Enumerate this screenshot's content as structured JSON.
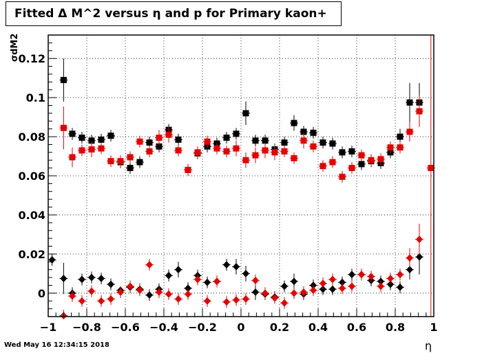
{
  "title": "Fitted Δ M^2 versus η and p for Primary kaon+",
  "timestamp": "Wed May 16 12:34:15 2018",
  "chart_data": {
    "type": "scatter",
    "title": "Fitted Δ M^2 versus η and p for Primary kaon+",
    "xlabel": "η",
    "ylabel": "σdM2",
    "xlim": [
      -1.0,
      1.0
    ],
    "ylim": [
      -0.012,
      0.132
    ],
    "grid": true,
    "x_ticks": [
      -1,
      -0.8,
      -0.6,
      -0.4,
      -0.2,
      0,
      0.2,
      0.4,
      0.6,
      0.8,
      1
    ],
    "x_tick_labels": [
      "−1",
      "−0.8",
      "−0.6",
      "−0.4",
      "−0.2",
      "0",
      "0.2",
      "0.4",
      "0.6",
      "0.8",
      "1"
    ],
    "y_ticks": [
      0,
      0.02,
      0.04,
      0.06,
      0.08,
      0.1,
      0.12
    ],
    "y_tick_labels": [
      "0",
      "0.02",
      "0.04",
      "0.06",
      "0.08",
      "0.1",
      "0.12"
    ],
    "series": [
      {
        "marker": "square",
        "color": "#000000",
        "x": [
          -0.92,
          -0.875,
          -0.825,
          -0.775,
          -0.725,
          -0.675,
          -0.625,
          -0.575,
          -0.525,
          -0.475,
          -0.425,
          -0.375,
          -0.325,
          -0.275,
          -0.225,
          -0.175,
          -0.125,
          -0.075,
          -0.025,
          0.025,
          0.075,
          0.125,
          0.175,
          0.225,
          0.275,
          0.325,
          0.375,
          0.425,
          0.475,
          0.525,
          0.575,
          0.625,
          0.675,
          0.725,
          0.775,
          0.825,
          0.875,
          0.925
        ],
        "y": [
          0.109,
          0.0815,
          0.0795,
          0.078,
          0.0785,
          0.0805,
          0.067,
          0.064,
          0.067,
          0.077,
          0.075,
          0.0835,
          0.0785,
          0.063,
          0.0715,
          0.075,
          0.0765,
          0.0795,
          0.0815,
          0.092,
          0.078,
          0.078,
          0.0735,
          0.077,
          0.087,
          0.0825,
          0.082,
          0.077,
          0.0765,
          0.072,
          0.0725,
          0.066,
          0.0675,
          0.0665,
          0.072,
          0.08,
          0.0975,
          0.0975
        ],
        "err": [
          0.011,
          0.003,
          0.003,
          0.003,
          0.003,
          0.003,
          0.003,
          0.003,
          0.003,
          0.003,
          0.003,
          0.003,
          0.003,
          0.003,
          0.003,
          0.003,
          0.003,
          0.003,
          0.003,
          0.006,
          0.003,
          0.003,
          0.003,
          0.003,
          0.004,
          0.003,
          0.003,
          0.003,
          0.003,
          0.003,
          0.003,
          0.003,
          0.003,
          0.003,
          0.003,
          0.004,
          0.01,
          0.01
        ]
      },
      {
        "marker": "square",
        "color": "#e60000",
        "x": [
          -0.92,
          -0.875,
          -0.825,
          -0.775,
          -0.725,
          -0.675,
          -0.625,
          -0.575,
          -0.525,
          -0.475,
          -0.425,
          -0.375,
          -0.325,
          -0.275,
          -0.225,
          -0.175,
          -0.125,
          -0.075,
          -0.025,
          0.025,
          0.075,
          0.125,
          0.175,
          0.225,
          0.275,
          0.325,
          0.375,
          0.425,
          0.475,
          0.525,
          0.575,
          0.625,
          0.675,
          0.725,
          0.775,
          0.825,
          0.875,
          0.925,
          0.985
        ],
        "y": [
          0.0845,
          0.0695,
          0.073,
          0.0735,
          0.074,
          0.0675,
          0.0675,
          0.0695,
          0.0775,
          0.0725,
          0.0795,
          0.081,
          0.073,
          0.063,
          0.072,
          0.0775,
          0.074,
          0.0725,
          0.074,
          0.068,
          0.0705,
          0.073,
          0.072,
          0.0725,
          0.069,
          0.078,
          0.075,
          0.065,
          0.067,
          0.0595,
          0.064,
          0.0705,
          0.068,
          0.0685,
          0.0745,
          0.0745,
          0.0825,
          0.093,
          0.064
        ],
        "err": [
          0.011,
          0.005,
          0.003,
          0.004,
          0.003,
          0.003,
          0.003,
          0.003,
          0.003,
          0.003,
          0.004,
          0.004,
          0.003,
          0.003,
          0.003,
          0.003,
          0.003,
          0.003,
          0.004,
          0.004,
          0.004,
          0.004,
          0.004,
          0.003,
          0.003,
          0.004,
          0.003,
          0.003,
          0.003,
          0.003,
          0.003,
          0.003,
          0.003,
          0.003,
          0.003,
          0.003,
          0.005,
          0.008,
          0.13
        ]
      },
      {
        "marker": "diamond",
        "color": "#000000",
        "x": [
          -0.98,
          -0.92,
          -0.875,
          -0.825,
          -0.775,
          -0.725,
          -0.675,
          -0.625,
          -0.575,
          -0.525,
          -0.475,
          -0.425,
          -0.375,
          -0.325,
          -0.275,
          -0.225,
          -0.175,
          -0.125,
          -0.075,
          -0.025,
          0.025,
          0.075,
          0.125,
          0.175,
          0.225,
          0.275,
          0.325,
          0.375,
          0.425,
          0.475,
          0.525,
          0.575,
          0.625,
          0.675,
          0.725,
          0.775,
          0.825,
          0.875,
          0.925
        ],
        "y": [
          0.017,
          0.0075,
          0.0,
          0.007,
          0.008,
          0.0075,
          0.0045,
          0.0015,
          0.003,
          0.002,
          -0.001,
          0.002,
          0.009,
          0.012,
          0.0025,
          0.009,
          0.0055,
          0.006,
          0.0145,
          0.0135,
          0.01,
          0.0005,
          -0.0005,
          -0.002,
          0.0035,
          0.006,
          -0.0005,
          0.004,
          0.002,
          0.002,
          0.0055,
          0.0095,
          0.0095,
          0.0065,
          0.006,
          0.0045,
          0.003,
          0.012,
          0.0185
        ],
        "err": [
          0.003,
          0.008,
          0.003,
          0.003,
          0.003,
          0.003,
          0.003,
          0.002,
          0.003,
          0.003,
          0.003,
          0.003,
          0.003,
          0.004,
          0.003,
          0.003,
          0.003,
          0.003,
          0.003,
          0.004,
          0.004,
          0.004,
          0.003,
          0.003,
          0.003,
          0.004,
          0.003,
          0.003,
          0.003,
          0.003,
          0.003,
          0.003,
          0.003,
          0.003,
          0.003,
          0.003,
          0.003,
          0.005,
          0.009
        ]
      },
      {
        "marker": "diamond",
        "color": "#e60000",
        "x": [
          -0.92,
          -0.875,
          -0.825,
          -0.775,
          -0.725,
          -0.675,
          -0.625,
          -0.575,
          -0.525,
          -0.475,
          -0.425,
          -0.375,
          -0.325,
          -0.275,
          -0.225,
          -0.175,
          -0.125,
          -0.075,
          -0.025,
          0.025,
          0.075,
          0.125,
          0.175,
          0.225,
          0.275,
          0.325,
          0.375,
          0.425,
          0.475,
          0.525,
          0.575,
          0.625,
          0.675,
          0.725,
          0.775,
          0.825,
          0.875,
          0.925
        ],
        "y": [
          -0.0115,
          -0.0015,
          -0.004,
          0.001,
          -0.004,
          -0.003,
          0.0005,
          0.0035,
          0.0015,
          0.0145,
          0.0005,
          -0.0005,
          -0.003,
          -0.0005,
          0.007,
          -0.004,
          0.006,
          -0.0045,
          -0.0035,
          -0.003,
          0.0065,
          0.0,
          -0.0025,
          -0.005,
          0.0,
          0.0005,
          0.0015,
          0.005,
          0.007,
          0.0025,
          0.0035,
          0.0095,
          0.0085,
          0.0035,
          0.0075,
          0.0095,
          0.018,
          0.0275
        ],
        "err": [
          0.003,
          0.003,
          0.003,
          0.003,
          0.003,
          0.003,
          0.003,
          0.003,
          0.003,
          0.003,
          0.003,
          0.003,
          0.003,
          0.003,
          0.003,
          0.003,
          0.003,
          0.003,
          0.003,
          0.003,
          0.003,
          0.003,
          0.003,
          0.003,
          0.003,
          0.003,
          0.003,
          0.003,
          0.003,
          0.003,
          0.003,
          0.003,
          0.003,
          0.003,
          0.003,
          0.003,
          0.005,
          0.008
        ]
      }
    ]
  }
}
